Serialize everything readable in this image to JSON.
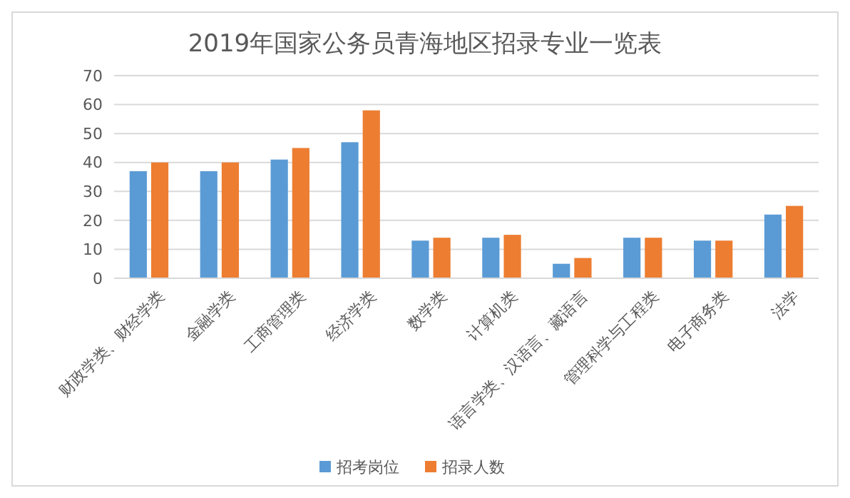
{
  "chart_data": {
    "type": "bar",
    "title": "2019年国家公务员青海地区招录专业一览表",
    "categories": [
      "财政学类、财经学类",
      "金融学类",
      "工商管理类",
      "经济学类",
      "数学类",
      "计算机类",
      "语言学类、汉语言、藏语言",
      "管理科学与工程类",
      "电子商务类",
      "法学"
    ],
    "series": [
      {
        "name": "招考岗位",
        "color": "#5b9bd5",
        "values": [
          37,
          37,
          41,
          47,
          13,
          14,
          5,
          14,
          13,
          22
        ]
      },
      {
        "name": "招录人数",
        "color": "#ed7d31",
        "values": [
          40,
          40,
          45,
          58,
          14,
          15,
          7,
          14,
          13,
          25
        ]
      }
    ],
    "ylim": [
      0,
      70
    ],
    "yticks": [
      0,
      10,
      20,
      30,
      40,
      50,
      60,
      70
    ],
    "grid": "y",
    "legend": "bottom"
  }
}
